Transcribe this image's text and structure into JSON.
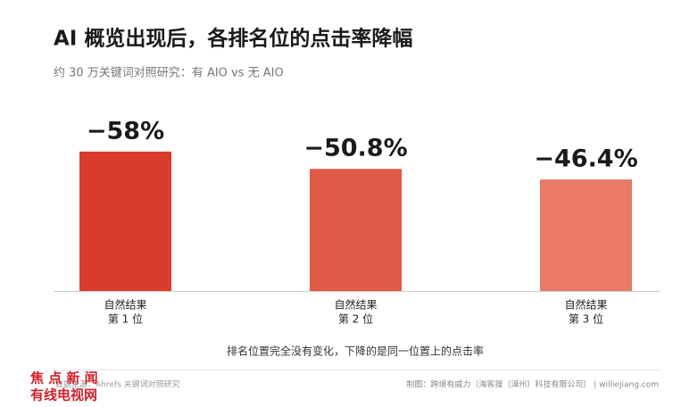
{
  "chart_data": {
    "type": "bar",
    "title": "AI 概览出现后，各排名位的点击率降幅",
    "subtitle": "约 30 万关键词对照研究：有 AIO vs 无 AIO",
    "categories": [
      [
        "自然结果",
        "第 1 位"
      ],
      [
        "自然结果",
        "第 2 位"
      ],
      [
        "自然结果",
        "第 3 位"
      ]
    ],
    "values": [
      -58,
      -50.8,
      -46.4
    ],
    "value_labels": [
      "−58%",
      "−50.8%",
      "−46.4%"
    ],
    "colors": [
      "#d93c2b",
      "#e05a47",
      "#e97a67"
    ],
    "ylim": [
      0,
      -65
    ],
    "note": "排名位置完全没有变化，下降的是同一位置上的点击率",
    "source": "数据来源：Ahrefs 关键词对照研究",
    "credit": "制图：跨境有威力（海客搜（漳州）科技有限公司） | williejiang.com",
    "watermark": [
      "焦 点 新 闻",
      "有线电视网"
    ]
  }
}
